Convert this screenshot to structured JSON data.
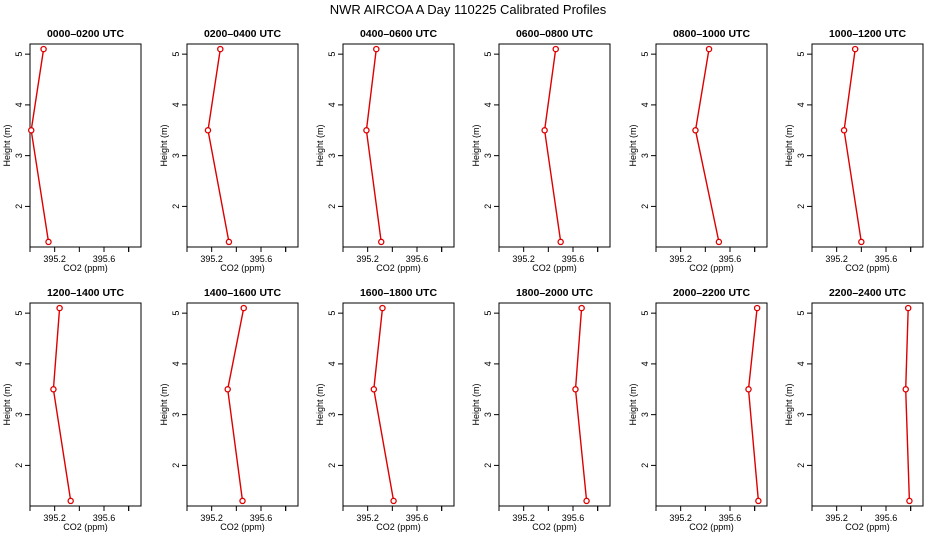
{
  "title": "NWR AIRCOA A  Day 110225  Calibrated Profiles",
  "chart_data": {
    "type": "line",
    "xlabel": "CO2 (ppm)",
    "ylabel": "Height (m)",
    "xlim": [
      395.0,
      395.9
    ],
    "ylim": [
      1.2,
      5.2
    ],
    "xticks": [
      395.2,
      395.6
    ],
    "yticks": [
      2,
      3,
      4,
      5
    ],
    "heights": [
      5.1,
      3.5,
      1.3
    ],
    "color": "#dd0000",
    "panels": [
      {
        "name": "0000–0200 UTC",
        "co2": [
          395.11,
          395.01,
          395.15
        ]
      },
      {
        "name": "0200–0400 UTC",
        "co2": [
          395.27,
          395.17,
          395.34
        ]
      },
      {
        "name": "0400–0600 UTC",
        "co2": [
          395.27,
          395.19,
          395.31
        ]
      },
      {
        "name": "0600–0800 UTC",
        "co2": [
          395.46,
          395.37,
          395.5
        ]
      },
      {
        "name": "0800–1000 UTC",
        "co2": [
          395.43,
          395.32,
          395.51
        ]
      },
      {
        "name": "1000–1200 UTC",
        "co2": [
          395.35,
          395.26,
          395.4
        ]
      },
      {
        "name": "1200–1400 UTC",
        "co2": [
          395.24,
          395.19,
          395.33
        ]
      },
      {
        "name": "1400–1600 UTC",
        "co2": [
          395.46,
          395.33,
          395.45
        ]
      },
      {
        "name": "1600–1800 UTC",
        "co2": [
          395.32,
          395.25,
          395.41
        ]
      },
      {
        "name": "1800–2000 UTC",
        "co2": [
          395.67,
          395.62,
          395.71
        ]
      },
      {
        "name": "2000–2200 UTC",
        "co2": [
          395.82,
          395.75,
          395.83
        ]
      },
      {
        "name": "2200–2400 UTC",
        "co2": [
          395.78,
          395.76,
          395.79
        ]
      }
    ]
  }
}
